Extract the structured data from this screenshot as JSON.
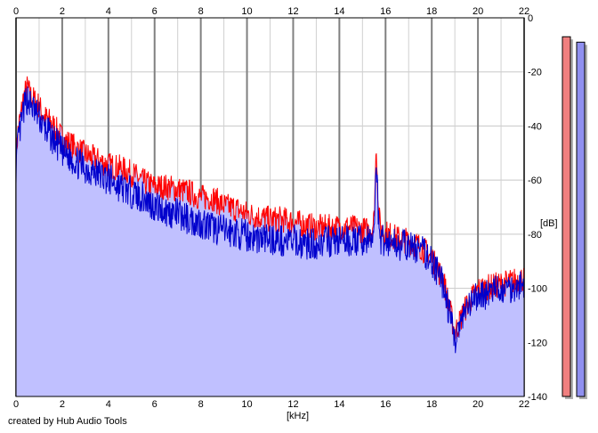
{
  "chart_data": {
    "type": "area",
    "xlabel": "[kHz]",
    "ylabel": "[dB]",
    "xlim": [
      0,
      22
    ],
    "ylim": [
      -140,
      0
    ],
    "x_ticks": [
      0,
      2,
      4,
      6,
      8,
      10,
      12,
      14,
      16,
      18,
      20,
      22
    ],
    "y_ticks": [
      0,
      -20,
      -40,
      -60,
      -80,
      -100,
      -120,
      -140
    ],
    "grid": true,
    "series": [
      {
        "color": "#ff0000",
        "x": [
          0,
          0.1,
          0.2,
          0.3,
          0.4,
          0.5,
          0.6,
          0.8,
          1.0,
          1.2,
          1.5,
          2.0,
          2.5,
          3.0,
          3.5,
          4.0,
          4.5,
          5.0,
          5.5,
          6.0,
          6.5,
          7.0,
          7.5,
          8.0,
          8.5,
          9.0,
          9.5,
          10.0,
          10.5,
          11.0,
          11.5,
          12.0,
          12.5,
          13.0,
          13.5,
          14.0,
          14.5,
          15.0,
          15.4,
          15.5,
          15.6,
          15.7,
          15.8,
          16.0,
          16.5,
          17.0,
          17.5,
          18.0,
          18.2,
          18.5,
          18.7,
          18.9,
          19.0,
          19.2,
          19.5,
          20.0,
          20.5,
          21.0,
          21.5,
          21.8,
          22.0
        ],
        "values": [
          -50,
          -40,
          -36,
          -30,
          -27,
          -25,
          -28,
          -30,
          -32,
          -36,
          -38,
          -44,
          -47,
          -50,
          -52,
          -54,
          -55,
          -57,
          -60,
          -62,
          -62,
          -63,
          -64,
          -66,
          -66,
          -69,
          -70,
          -72,
          -73,
          -74,
          -74,
          -75,
          -76,
          -77,
          -77,
          -77,
          -77,
          -78,
          -78,
          -74,
          -46,
          -72,
          -78,
          -79,
          -81,
          -82,
          -84,
          -88,
          -92,
          -96,
          -104,
          -112,
          -116,
          -112,
          -106,
          -100,
          -99,
          -98,
          -97,
          -96,
          -96
        ]
      },
      {
        "color": "#0000cc",
        "x": [
          0,
          0.1,
          0.2,
          0.3,
          0.4,
          0.5,
          0.6,
          0.8,
          1.0,
          1.2,
          1.5,
          2.0,
          2.5,
          3.0,
          3.5,
          4.0,
          4.5,
          5.0,
          5.5,
          6.0,
          6.5,
          7.0,
          7.5,
          8.0,
          8.5,
          9.0,
          9.5,
          10.0,
          10.5,
          11.0,
          11.5,
          12.0,
          12.5,
          13.0,
          13.5,
          14.0,
          14.5,
          15.0,
          15.4,
          15.5,
          15.6,
          15.7,
          15.8,
          16.0,
          16.5,
          17.0,
          17.5,
          18.0,
          18.2,
          18.5,
          18.7,
          18.9,
          19.0,
          19.2,
          19.5,
          20.0,
          20.5,
          21.0,
          21.5,
          21.8,
          22.0
        ],
        "values": [
          -55,
          -44,
          -40,
          -35,
          -31,
          -29,
          -31,
          -34,
          -36,
          -40,
          -43,
          -49,
          -52,
          -55,
          -57,
          -59,
          -62,
          -64,
          -66,
          -69,
          -71,
          -72,
          -74,
          -75,
          -77,
          -78,
          -79,
          -80,
          -81,
          -81,
          -82,
          -82,
          -83,
          -83,
          -82,
          -82,
          -82,
          -82,
          -82,
          -78,
          -50,
          -76,
          -81,
          -82,
          -83,
          -84,
          -85,
          -89,
          -93,
          -98,
          -106,
          -114,
          -118,
          -114,
          -108,
          -102,
          -101,
          -100,
          -99,
          -98,
          -98
        ]
      }
    ],
    "fill_color": "#c0c0ff",
    "level_meters": [
      {
        "color": "#f08080",
        "value": -7
      },
      {
        "color": "#9090f0",
        "value": -9
      }
    ]
  },
  "footer": {
    "credit": "created by Hub Audio Tools"
  }
}
